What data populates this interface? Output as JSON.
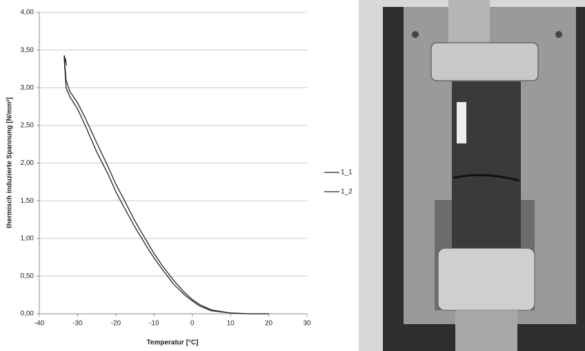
{
  "chart_data": {
    "type": "line",
    "xlabel": "Temperatur [°C]",
    "ylabel": "thermisch induzierte Spannung [N/mm²]",
    "xlim": [
      -40,
      30
    ],
    "xticks": [
      -40,
      -30,
      -20,
      -10,
      0,
      10,
      20,
      30
    ],
    "ylim": [
      0,
      4
    ],
    "yticks": [
      {
        "value": 0,
        "label": "0,00"
      },
      {
        "value": 0.5,
        "label": "0,50"
      },
      {
        "value": 1,
        "label": "1,00"
      },
      {
        "value": 1.5,
        "label": "1,50"
      },
      {
        "value": 2,
        "label": "2,00"
      },
      {
        "value": 2.5,
        "label": "2,50"
      },
      {
        "value": 3,
        "label": "3,00"
      },
      {
        "value": 3.5,
        "label": "3,50"
      },
      {
        "value": 4,
        "label": "4,00"
      }
    ],
    "grid": true,
    "legend": "right",
    "series": [
      {
        "name": "1_1",
        "color": "#222222",
        "x": [
          20,
          15,
          10,
          5,
          2,
          0,
          -2,
          -5,
          -8,
          -10,
          -12,
          -15,
          -18,
          -20,
          -22,
          -25,
          -28,
          -30,
          -32,
          -33,
          -33.5,
          -33
        ],
        "values": [
          0,
          0,
          0.01,
          0.05,
          0.12,
          0.19,
          0.28,
          0.45,
          0.65,
          0.8,
          0.97,
          1.23,
          1.53,
          1.72,
          1.95,
          2.27,
          2.6,
          2.8,
          2.95,
          3.1,
          3.43,
          3.35
        ]
      },
      {
        "name": "1_2",
        "color": "#222222",
        "x": [
          20,
          15,
          10,
          5,
          2,
          0,
          -2,
          -5,
          -8,
          -10,
          -12,
          -15,
          -18,
          -20,
          -22,
          -25,
          -28,
          -30,
          -32,
          -33,
          -33.5,
          -32.8
        ],
        "values": [
          0,
          0,
          0.01,
          0.04,
          0.1,
          0.17,
          0.25,
          0.4,
          0.6,
          0.74,
          0.9,
          1.15,
          1.43,
          1.62,
          1.85,
          2.15,
          2.5,
          2.72,
          2.88,
          3.0,
          3.4,
          3.3
        ]
      }
    ]
  }
}
